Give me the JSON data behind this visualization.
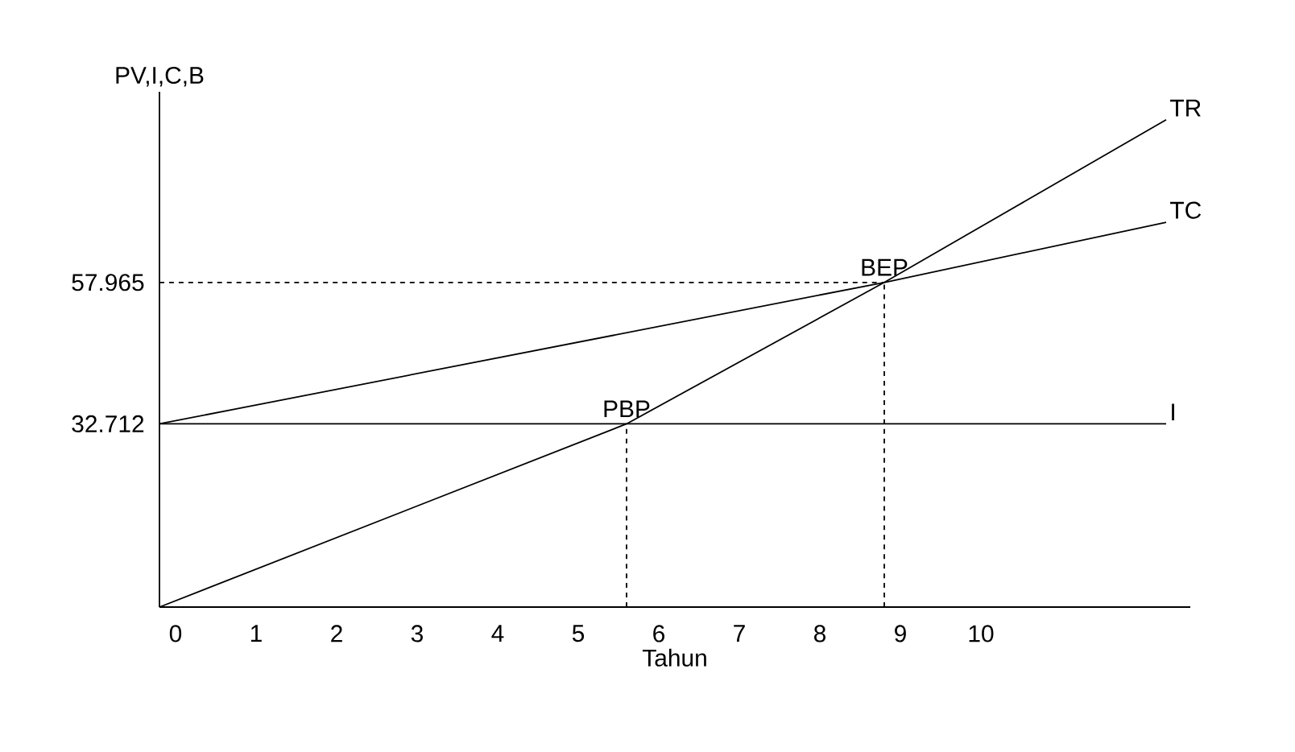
{
  "chart_data": {
    "type": "line",
    "xlabel": "Tahun",
    "ylabel": "PV,I,C,B",
    "xlim": [
      -0.2,
      12.6
    ],
    "ylim": [
      0,
      92
    ],
    "xticks": [
      0,
      1,
      2,
      3,
      4,
      5,
      6,
      7,
      8,
      9,
      10
    ],
    "yticks": [
      32.712,
      57.965
    ],
    "grid": false,
    "marker": "none",
    "series": [
      {
        "name": "TR",
        "color": "#000000",
        "x": [
          -0.2,
          5.6,
          8.8,
          12.3
        ],
        "values": [
          0,
          32.712,
          57.965,
          87
        ]
      },
      {
        "name": "TC",
        "color": "#000000",
        "x": [
          -0.2,
          8.8,
          12.3
        ],
        "values": [
          32.712,
          57.965,
          68.7
        ]
      },
      {
        "name": "I",
        "color": "#000000",
        "x": [
          -0.2,
          12.3
        ],
        "values": [
          32.712,
          32.712
        ]
      },
      {
        "color": "#000000",
        "line_style": "dashed",
        "x": [
          -0.2,
          8.8
        ],
        "values": [
          57.965,
          57.965
        ]
      },
      {
        "color": "#000000",
        "line_style": "dashed",
        "x": [
          5.6,
          5.6
        ],
        "values": [
          0,
          32.712
        ]
      },
      {
        "color": "#000000",
        "line_style": "dashed",
        "x": [
          8.8,
          8.8
        ],
        "values": [
          0,
          57.965
        ]
      }
    ],
    "annotations": [
      {
        "text": "PBP",
        "x": 5.6,
        "y": 32.712
      },
      {
        "text": "BEP",
        "x": 8.8,
        "y": 57.965
      }
    ]
  }
}
